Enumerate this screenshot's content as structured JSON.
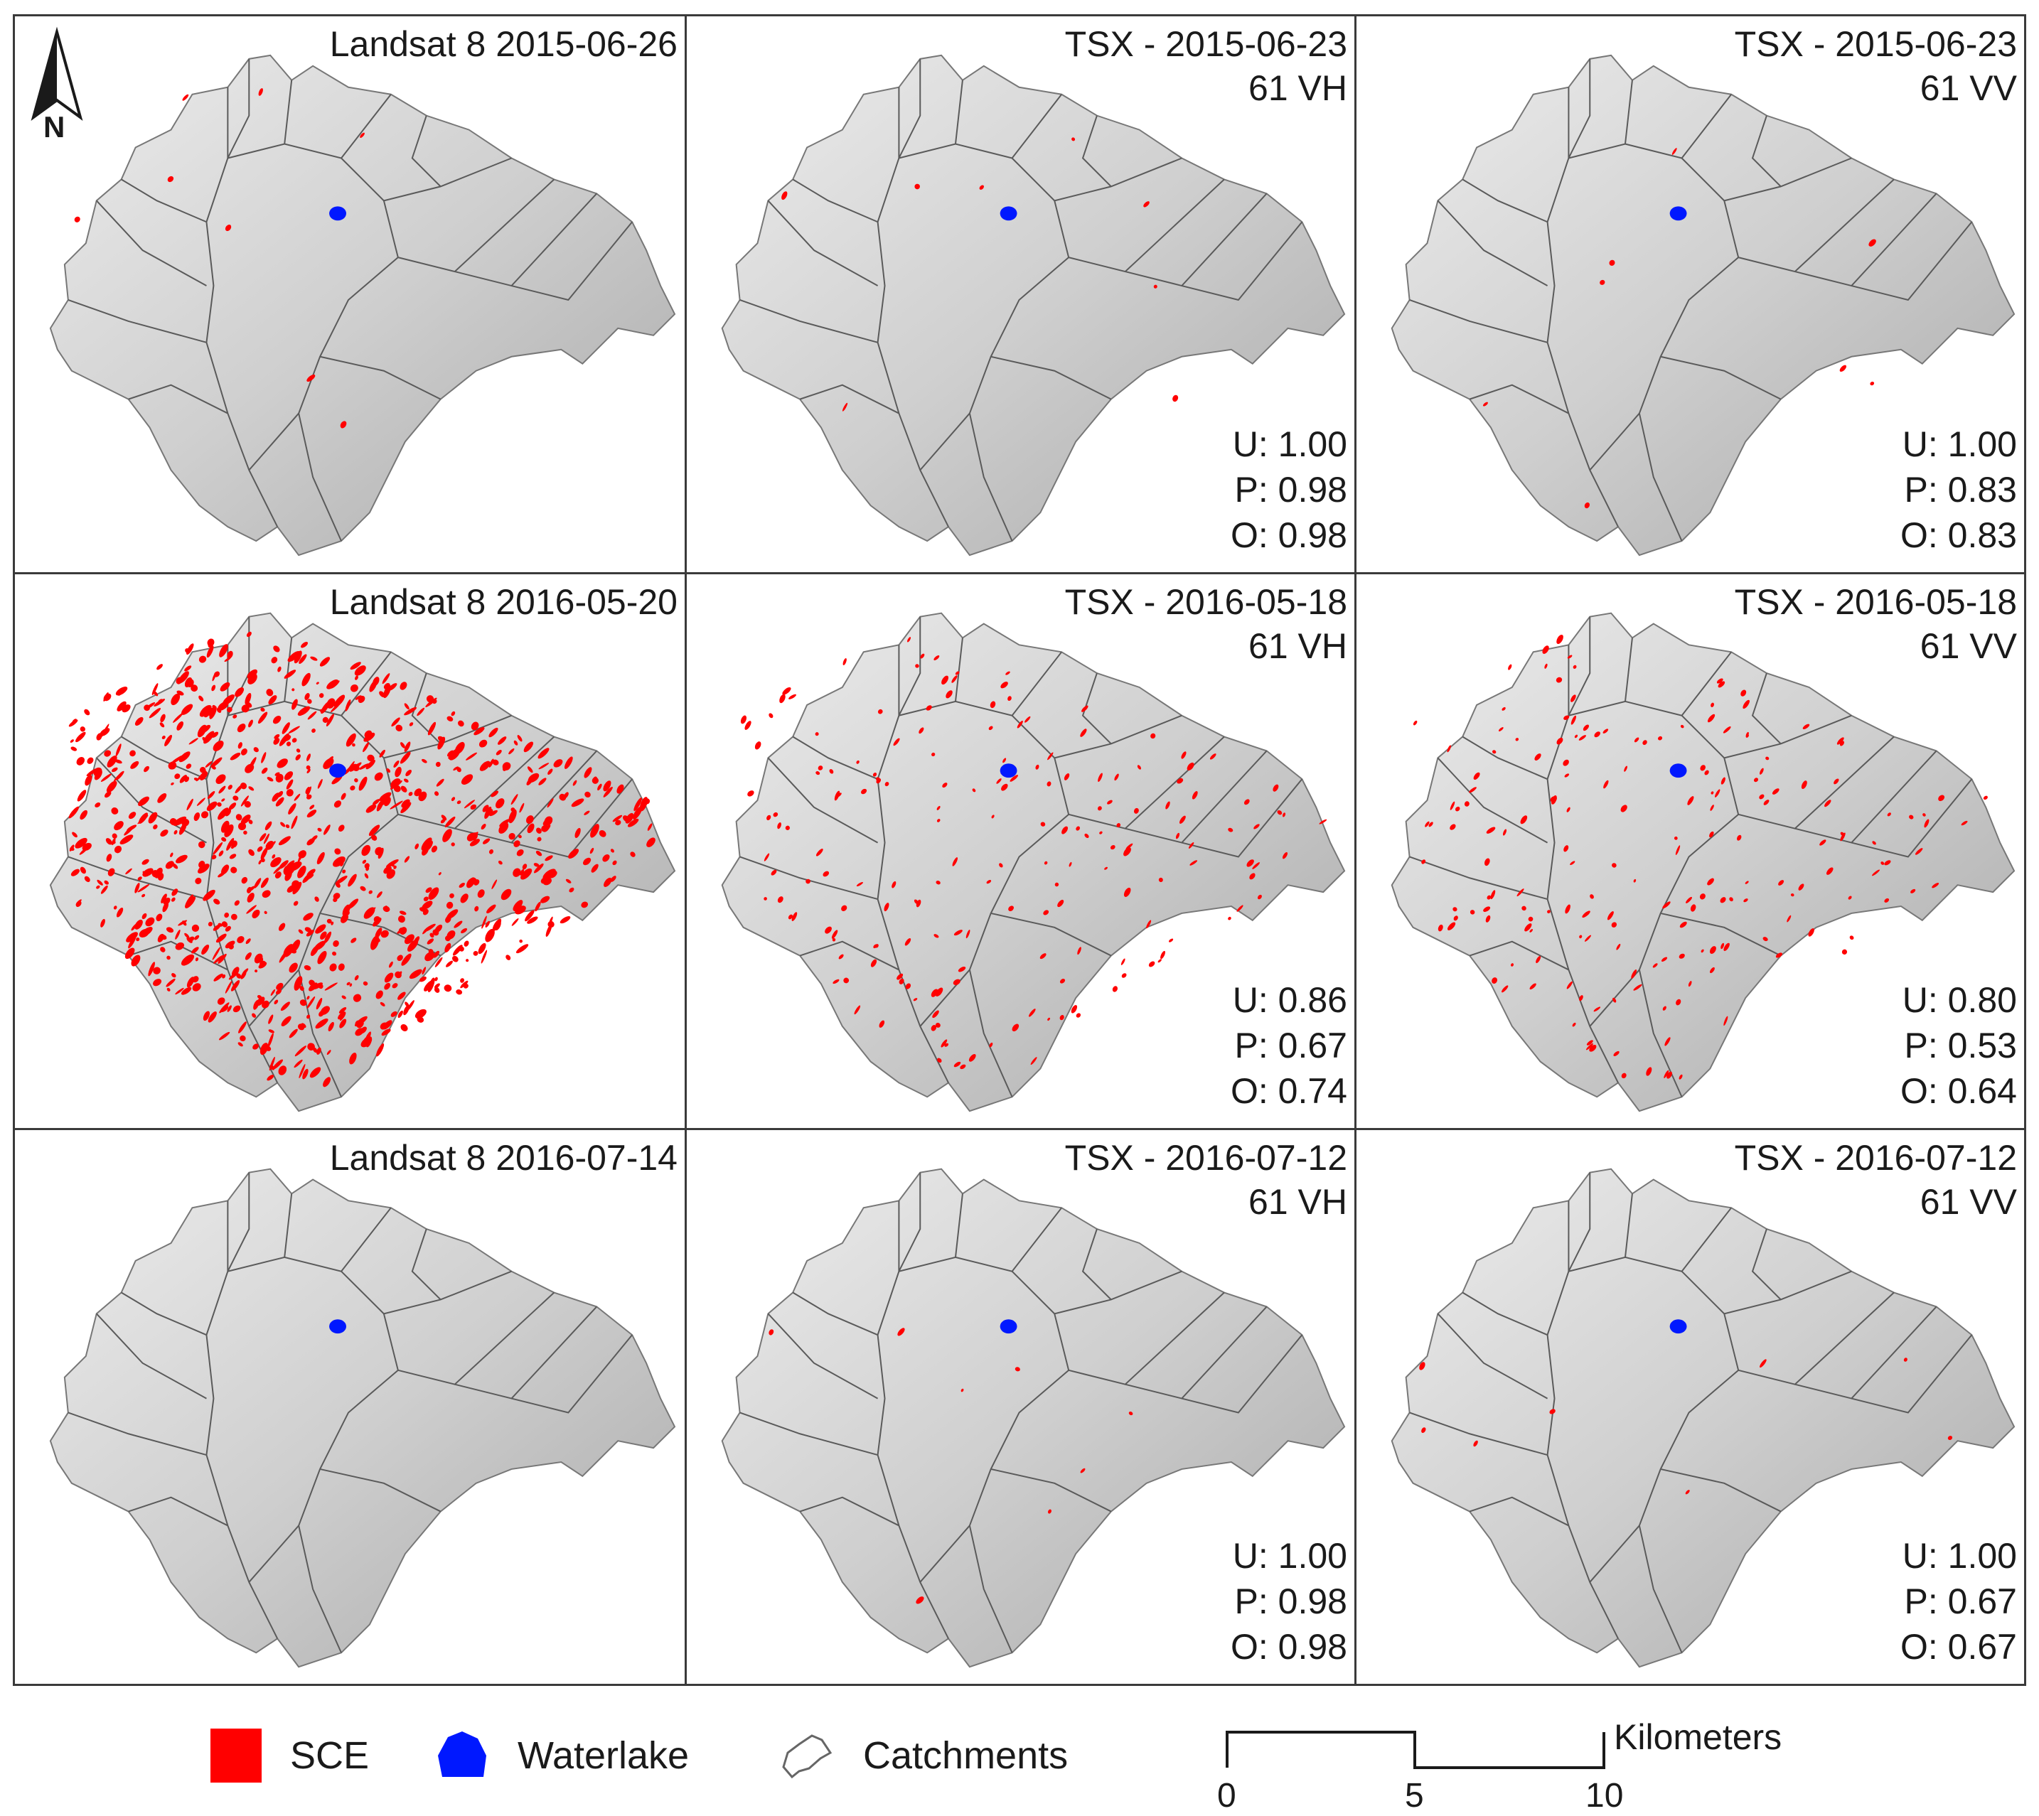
{
  "colors": {
    "sce": "#ff0000",
    "waterlake": "#0018ff",
    "border": "#3a3a3a",
    "relief_light": "#e6e6e6",
    "relief_dark": "#9a9a9a",
    "catchment_line": "#555555"
  },
  "north_arrow": {
    "label": "N"
  },
  "panels": [
    {
      "title_line1": "Landsat 8  2015-06-26",
      "title_line2": "",
      "u": "",
      "p": "",
      "o": "",
      "snow_level": "low"
    },
    {
      "title_line1": "TSX - 2015-06-23",
      "title_line2": "61 VH",
      "u": "U:  1.00",
      "p": "P:  0.98",
      "o": "O:  0.98",
      "snow_level": "low"
    },
    {
      "title_line1": "TSX - 2015-06-23",
      "title_line2": "61 VV",
      "u": "U:   1.00",
      "p": "P:  0.83",
      "o": "O:  0.83",
      "snow_level": "low"
    },
    {
      "title_line1": "Landsat 8  2016-05-20",
      "title_line2": "",
      "u": "",
      "p": "",
      "o": "",
      "snow_level": "high"
    },
    {
      "title_line1": "TSX - 2016-05-18",
      "title_line2": "61 VH",
      "u": "U:  0.86",
      "p": "P:  0.67",
      "o": "O:  0.74",
      "snow_level": "medium"
    },
    {
      "title_line1": "TSX - 2016-05-18",
      "title_line2": "61 VV",
      "u": "U:  0.80",
      "p": "P:  0.53",
      "o": "O:  0.64",
      "snow_level": "medium"
    },
    {
      "title_line1": "Landsat 8  2016-07-14",
      "title_line2": "",
      "u": "",
      "p": "",
      "o": "",
      "snow_level": "none"
    },
    {
      "title_line1": "TSX - 2016-07-12",
      "title_line2": "61 VH",
      "u": "U: 1.00",
      "p": "P:  0.98",
      "o": "O:  0.98",
      "snow_level": "low"
    },
    {
      "title_line1": "TSX - 2016-07-12",
      "title_line2": "61 VV",
      "u": "U:  1.00",
      "p": "P:  0.67",
      "o": "O:  0.67",
      "snow_level": "low"
    }
  ],
  "legend": {
    "sce": "SCE",
    "waterlake": "Waterlake",
    "catchments": "Catchments",
    "scale_unit": "Kilometers",
    "scale_ticks": [
      "0",
      "5",
      "10"
    ]
  }
}
